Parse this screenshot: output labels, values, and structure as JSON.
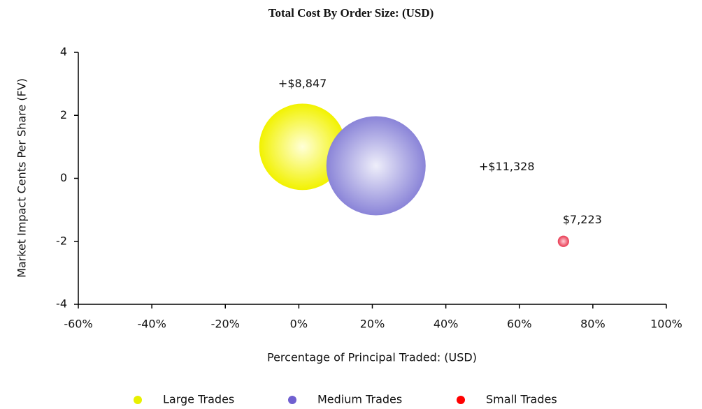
{
  "chart_data": {
    "type": "bubble",
    "title": "Total Cost By Order Size: (USD)",
    "x_label": "Percentage of Principal Traded: (USD)",
    "y_label": "Market Impact Cents Per Share (FV)",
    "xlim": [
      -60,
      100
    ],
    "xticks": [
      {
        "value": -60,
        "label": "-60%"
      },
      {
        "value": -40,
        "label": "-40%"
      },
      {
        "value": -20,
        "label": "-20%"
      },
      {
        "value": 0,
        "label": "0%"
      },
      {
        "value": 20,
        "label": "20%"
      },
      {
        "value": 40,
        "label": "40%"
      },
      {
        "value": 60,
        "label": "60%"
      },
      {
        "value": 80,
        "label": "80%"
      },
      {
        "value": 100,
        "label": "100%"
      }
    ],
    "ylim": [
      -4,
      4
    ],
    "yticks": [
      -4,
      -2,
      0,
      2,
      4
    ],
    "legend": "bottom",
    "series": [
      {
        "name": "Large Trades",
        "color": "#e8f000",
        "x": [
          1
        ],
        "values": [
          1
        ],
        "size": [
          76
        ],
        "cost": [
          8847
        ],
        "cost_labels": [
          "+$8,847"
        ]
      },
      {
        "name": "Medium Trades",
        "color": "#7060d0",
        "x": [
          21
        ],
        "values": [
          0.4
        ],
        "size": [
          100
        ],
        "cost": [
          11328
        ],
        "cost_labels": [
          "+$11,328"
        ]
      },
      {
        "name": "Small Trades",
        "color": "#ff0000",
        "x": [
          72
        ],
        "values": [
          -2
        ],
        "size": [
          1.3
        ],
        "cost": [
          7223
        ],
        "cost_labels": [
          "$7,223"
        ]
      }
    ]
  }
}
